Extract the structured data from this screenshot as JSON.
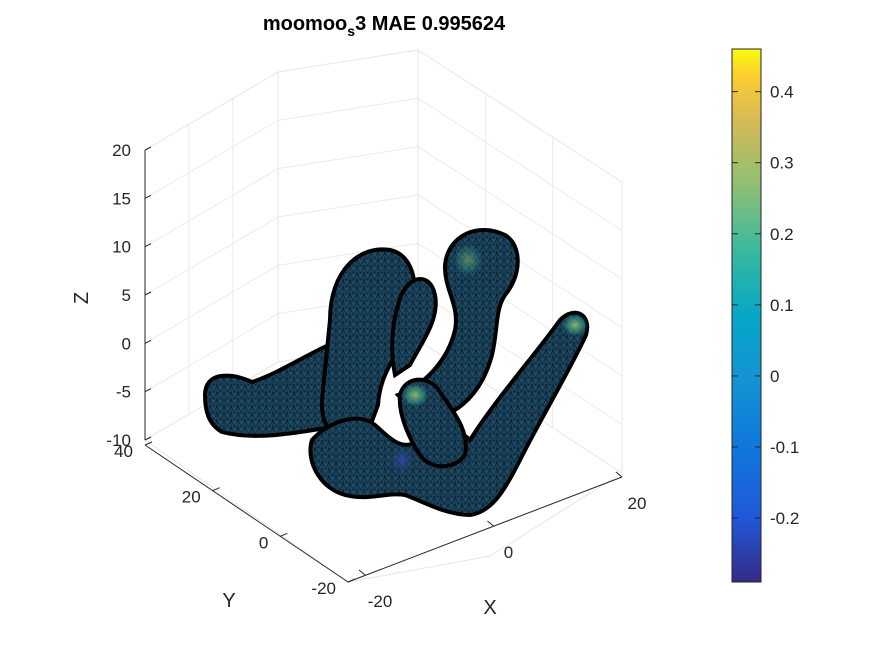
{
  "chart_data": {
    "type": "surface",
    "title": {
      "prefix": "moomoo",
      "subscript": "s",
      "suffix": "3 MAE 0.995624"
    },
    "xlabel": "X",
    "ylabel": "Y",
    "zlabel": "Z",
    "x_ticks": [
      "-20",
      "0",
      "20"
    ],
    "y_ticks": [
      "-20",
      "0",
      "20",
      "40"
    ],
    "z_ticks": [
      "20",
      "15",
      "10",
      "5",
      "0",
      "-5",
      "-10"
    ],
    "colorbar": {
      "colormap": "parula",
      "range": [
        -0.29,
        0.46
      ],
      "ticks": [
        "0.4",
        "0.3",
        "0.2",
        "0.1",
        "0",
        "-0.1",
        "-0.2"
      ],
      "tick_values": [
        0.4,
        0.3,
        0.2,
        0.1,
        0,
        -0.1,
        -0.2
      ]
    },
    "surface_color": "#1f4f6b",
    "edge_color": "#000000",
    "grid": true
  }
}
